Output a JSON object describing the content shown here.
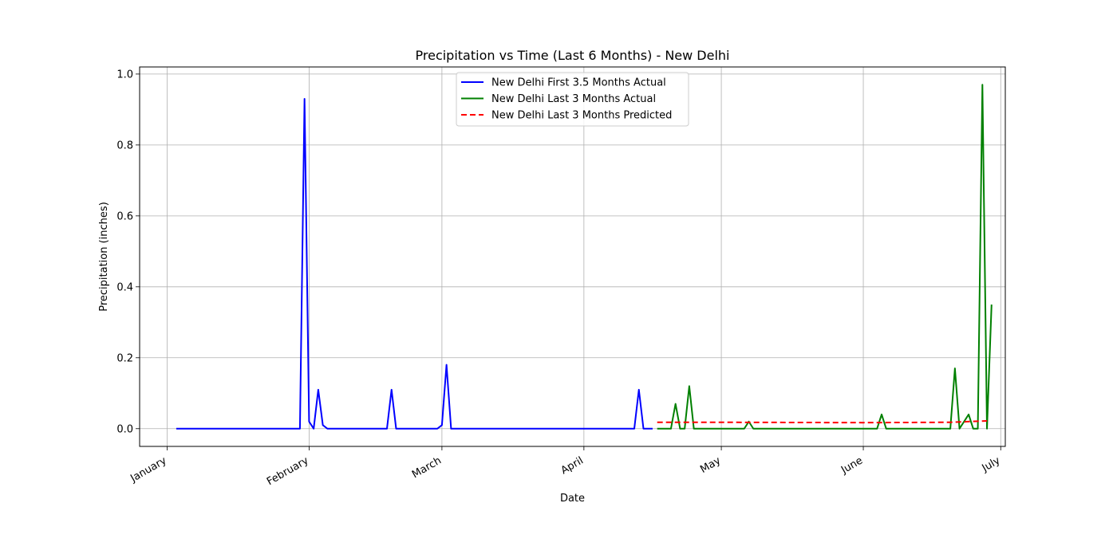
{
  "chart_data": {
    "type": "line",
    "title": "Precipitation vs Time (Last 6 Months) - New Delhi",
    "xlabel": "Date",
    "ylabel": "Precipitation (inches)",
    "xlim": [
      "2023-12-26",
      "2024-07-02"
    ],
    "ylim": [
      -0.05,
      1.02
    ],
    "x_ticks": [
      {
        "date": "2024-01-01",
        "label": "January"
      },
      {
        "date": "2024-02-01",
        "label": "February"
      },
      {
        "date": "2024-03-01",
        "label": "March"
      },
      {
        "date": "2024-04-01",
        "label": "April"
      },
      {
        "date": "2024-05-01",
        "label": "May"
      },
      {
        "date": "2024-06-01",
        "label": "June"
      },
      {
        "date": "2024-07-01",
        "label": "July"
      }
    ],
    "y_ticks": [
      0.0,
      0.2,
      0.4,
      0.6,
      0.8,
      1.0
    ],
    "grid": true,
    "legend_position": "top-center",
    "series": [
      {
        "name": "New Delhi First 3.5 Months Actual",
        "color": "#0000ff",
        "style": "solid",
        "points": [
          {
            "x": "2024-01-03",
            "y": 0.0
          },
          {
            "x": "2024-01-30",
            "y": 0.0
          },
          {
            "x": "2024-01-31",
            "y": 0.93
          },
          {
            "x": "2024-02-01",
            "y": 0.02
          },
          {
            "x": "2024-02-02",
            "y": 0.0
          },
          {
            "x": "2024-02-03",
            "y": 0.11
          },
          {
            "x": "2024-02-04",
            "y": 0.01
          },
          {
            "x": "2024-02-05",
            "y": 0.0
          },
          {
            "x": "2024-02-18",
            "y": 0.0
          },
          {
            "x": "2024-02-19",
            "y": 0.11
          },
          {
            "x": "2024-02-20",
            "y": 0.0
          },
          {
            "x": "2024-02-29",
            "y": 0.0
          },
          {
            "x": "2024-03-01",
            "y": 0.01
          },
          {
            "x": "2024-03-02",
            "y": 0.18
          },
          {
            "x": "2024-03-03",
            "y": 0.0
          },
          {
            "x": "2024-04-12",
            "y": 0.0
          },
          {
            "x": "2024-04-13",
            "y": 0.11
          },
          {
            "x": "2024-04-14",
            "y": 0.0
          },
          {
            "x": "2024-04-16",
            "y": 0.0
          }
        ]
      },
      {
        "name": "New Delhi Last 3 Months Actual",
        "color": "#008000",
        "style": "solid",
        "points": [
          {
            "x": "2024-04-17",
            "y": 0.0
          },
          {
            "x": "2024-04-20",
            "y": 0.0
          },
          {
            "x": "2024-04-21",
            "y": 0.07
          },
          {
            "x": "2024-04-22",
            "y": 0.0
          },
          {
            "x": "2024-04-23",
            "y": 0.0
          },
          {
            "x": "2024-04-24",
            "y": 0.12
          },
          {
            "x": "2024-04-25",
            "y": 0.0
          },
          {
            "x": "2024-05-06",
            "y": 0.0
          },
          {
            "x": "2024-05-07",
            "y": 0.02
          },
          {
            "x": "2024-05-08",
            "y": 0.0
          },
          {
            "x": "2024-06-04",
            "y": 0.0
          },
          {
            "x": "2024-06-05",
            "y": 0.04
          },
          {
            "x": "2024-06-06",
            "y": 0.0
          },
          {
            "x": "2024-06-20",
            "y": 0.0
          },
          {
            "x": "2024-06-21",
            "y": 0.17
          },
          {
            "x": "2024-06-22",
            "y": 0.0
          },
          {
            "x": "2024-06-24",
            "y": 0.04
          },
          {
            "x": "2024-06-25",
            "y": 0.0
          },
          {
            "x": "2024-06-26",
            "y": 0.0
          },
          {
            "x": "2024-06-27",
            "y": 0.97
          },
          {
            "x": "2024-06-28",
            "y": 0.0
          },
          {
            "x": "2024-06-29",
            "y": 0.35
          }
        ]
      },
      {
        "name": "New Delhi Last 3 Months Predicted",
        "color": "#ff0000",
        "style": "dashed",
        "points": [
          {
            "x": "2024-04-17",
            "y": 0.018
          },
          {
            "x": "2024-05-01",
            "y": 0.018
          },
          {
            "x": "2024-06-01",
            "y": 0.017
          },
          {
            "x": "2024-06-20",
            "y": 0.018
          },
          {
            "x": "2024-06-28",
            "y": 0.022
          }
        ]
      }
    ]
  }
}
